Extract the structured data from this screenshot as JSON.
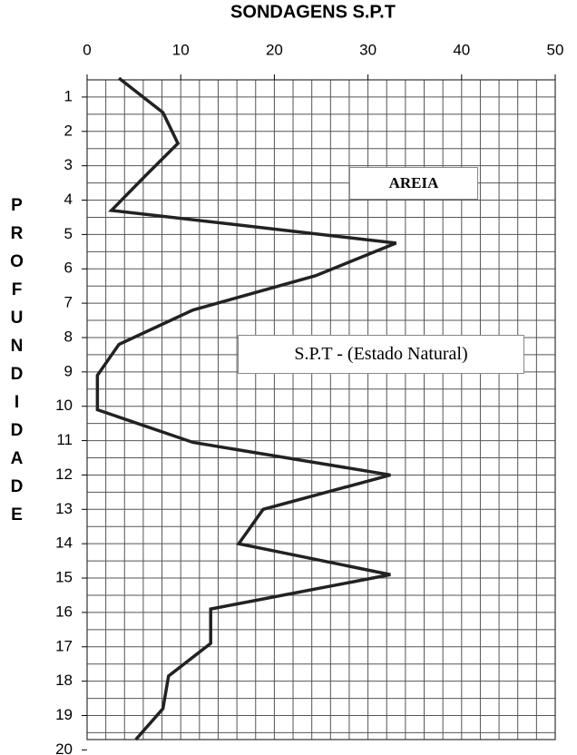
{
  "chart_data": {
    "type": "line",
    "title": "SONDAGENS S.P.T",
    "ylabel": "PROFUNDIDADE",
    "annotations": [
      "AREIA",
      "S.P.T - (Estado Natural)"
    ],
    "color": "#222222",
    "xlim": [
      0,
      50
    ],
    "xticks": [
      0,
      10,
      20,
      30,
      40,
      50
    ],
    "xgrid": [
      0,
      2,
      4,
      6,
      8,
      10,
      12,
      14,
      16,
      18,
      20,
      22,
      24,
      26,
      28,
      30,
      32,
      34,
      36,
      38,
      40,
      42,
      44,
      46,
      48,
      50
    ],
    "ylim": [
      0.5,
      19.7
    ],
    "yticks": [
      1,
      2,
      3,
      4,
      5,
      6,
      7,
      8,
      9,
      10,
      11,
      12,
      13,
      14,
      15,
      16,
      17,
      18,
      19,
      20
    ],
    "ygrid": [
      0.5,
      1,
      1.5,
      2,
      2.5,
      3,
      3.5,
      4,
      4.5,
      5,
      5.5,
      6,
      6.5,
      7,
      7.5,
      8,
      8.5,
      9,
      9.5,
      10,
      10.5,
      11,
      11.5,
      12,
      12.5,
      13,
      13.5,
      14,
      14.5,
      15,
      15.5,
      16,
      16.5,
      17,
      17.5,
      18,
      18.5,
      19,
      19.5
    ],
    "depth": [
      0.45,
      1.45,
      2.35,
      3.3,
      4.3,
      5.25,
      6.2,
      7.2,
      8.2,
      9.1,
      10.1,
      11.05,
      12.0,
      13.0,
      14.0,
      14.9,
      15.9,
      16.9,
      17.85,
      18.8,
      19.7
    ],
    "values": [
      3.4,
      8.1,
      9.7,
      6.2,
      2.6,
      33,
      24.4,
      11.3,
      3.4,
      1.1,
      1.1,
      11.3,
      32.4,
      18.8,
      16.2,
      32.4,
      13.2,
      13.2,
      8.7,
      8.1,
      5.2
    ]
  }
}
